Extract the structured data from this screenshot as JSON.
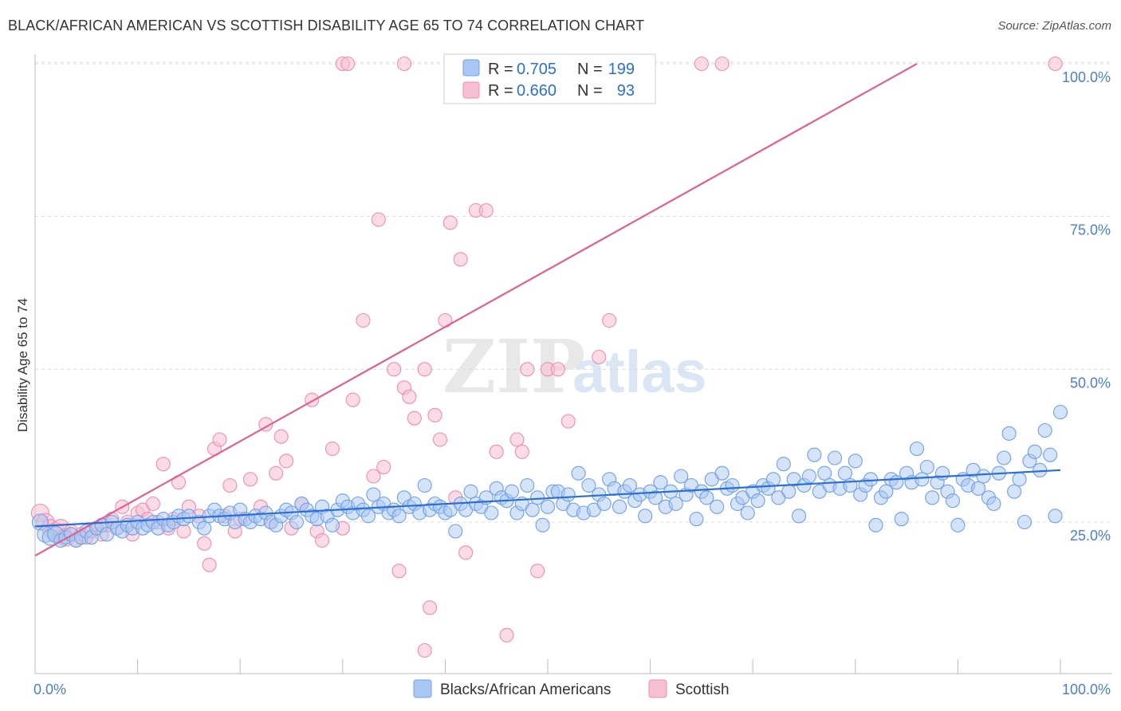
{
  "header": {
    "title": "BLACK/AFRICAN AMERICAN VS SCOTTISH DISABILITY AGE 65 TO 74 CORRELATION CHART",
    "source": "Source: ZipAtlas.com"
  },
  "watermark": {
    "zip": "ZIP",
    "atlas": "atlas"
  },
  "legend_box": {
    "rows": [
      {
        "r_label": "R = ",
        "r_value": "0.705",
        "n_label": "N = ",
        "n_value": "199",
        "color": "#6fa0e8"
      },
      {
        "r_label": "R = ",
        "r_value": "0.660",
        "n_label": "N = ",
        "n_value": "93",
        "color": "#f08cb0"
      }
    ]
  },
  "colors": {
    "blue_fill": "#a9c7f2",
    "blue_stroke": "#6fa0e8",
    "blue_line": "#2b6fd4",
    "pink_fill": "#f7bfd2",
    "pink_stroke": "#f08cb0",
    "pink_line": "#e06090",
    "tick_text": "#4a7fd0",
    "grid": "#dddddd"
  },
  "chart_data": {
    "type": "scatter",
    "title": "BLACK/AFRICAN AMERICAN VS SCOTTISH DISABILITY AGE 65 TO 74 CORRELATION CHART",
    "xlabel": "",
    "ylabel": "Disability Age 65 to 74",
    "xlim": [
      0,
      100
    ],
    "ylim": [
      0,
      105
    ],
    "x_tick_labels": [
      "0.0%",
      "100.0%"
    ],
    "y_ticks": [
      25,
      50,
      75,
      100
    ],
    "y_tick_labels": [
      "25.0%",
      "50.0%",
      "75.0%",
      "100.0%"
    ],
    "grid": true,
    "legend_position": "bottom-center",
    "series": [
      {
        "name": "Blacks/African Americans",
        "R": 0.705,
        "N": 199,
        "trend": {
          "x": [
            0,
            100
          ],
          "y": [
            24.3,
            33.5
          ]
        },
        "points": [
          [
            0.5,
            25
          ],
          [
            1,
            23
          ],
          [
            1.5,
            22.5
          ],
          [
            2,
            23
          ],
          [
            2.5,
            22
          ],
          [
            3,
            22.5
          ],
          [
            3.5,
            23
          ],
          [
            4,
            22
          ],
          [
            4.5,
            22.5
          ],
          [
            5,
            23.5
          ],
          [
            5.5,
            22.5
          ],
          [
            6,
            24
          ],
          [
            6.5,
            24.5
          ],
          [
            7,
            23
          ],
          [
            7.5,
            25
          ],
          [
            8,
            24
          ],
          [
            8.5,
            23.5
          ],
          [
            9,
            24.5
          ],
          [
            9.5,
            24
          ],
          [
            10,
            25
          ],
          [
            10.5,
            24
          ],
          [
            11,
            24.5
          ],
          [
            11.5,
            25
          ],
          [
            12,
            24
          ],
          [
            12.5,
            25.5
          ],
          [
            13,
            24.5
          ],
          [
            13.5,
            25
          ],
          [
            14,
            26
          ],
          [
            14.5,
            25.5
          ],
          [
            15,
            26
          ],
          [
            16,
            25
          ],
          [
            16.5,
            24
          ],
          [
            17,
            26
          ],
          [
            17.5,
            27
          ],
          [
            18,
            26
          ],
          [
            18.5,
            25.5
          ],
          [
            19,
            26.5
          ],
          [
            19.5,
            25
          ],
          [
            20,
            27
          ],
          [
            20.5,
            25.5
          ],
          [
            21,
            25
          ],
          [
            21.5,
            26
          ],
          [
            22,
            25.5
          ],
          [
            22.5,
            26.5
          ],
          [
            23,
            25
          ],
          [
            23.5,
            24.5
          ],
          [
            24,
            26
          ],
          [
            24.5,
            27
          ],
          [
            25,
            26.5
          ],
          [
            25.5,
            25
          ],
          [
            26,
            28
          ],
          [
            26.5,
            27
          ],
          [
            27,
            26
          ],
          [
            27.5,
            25.5
          ],
          [
            28,
            27.5
          ],
          [
            28.5,
            26
          ],
          [
            29,
            24.5
          ],
          [
            29.5,
            27
          ],
          [
            30,
            28.5
          ],
          [
            30.5,
            27.5
          ],
          [
            31,
            26.5
          ],
          [
            31.5,
            28
          ],
          [
            32,
            27
          ],
          [
            32.5,
            26
          ],
          [
            33,
            29.5
          ],
          [
            33.5,
            27.5
          ],
          [
            34,
            28
          ],
          [
            34.5,
            26.5
          ],
          [
            35,
            27
          ],
          [
            35.5,
            26
          ],
          [
            36,
            29
          ],
          [
            36.5,
            27.5
          ],
          [
            37,
            28
          ],
          [
            37.5,
            26.5
          ],
          [
            38,
            31
          ],
          [
            38.5,
            27
          ],
          [
            39,
            28
          ],
          [
            39.5,
            27.5
          ],
          [
            40,
            26.5
          ],
          [
            40.5,
            27
          ],
          [
            41,
            23.5
          ],
          [
            41.5,
            28
          ],
          [
            42,
            27
          ],
          [
            42.5,
            30
          ],
          [
            43,
            28
          ],
          [
            43.5,
            27.5
          ],
          [
            44,
            29
          ],
          [
            44.5,
            26.5
          ],
          [
            45,
            30.5
          ],
          [
            45.5,
            29
          ],
          [
            46,
            28.5
          ],
          [
            46.5,
            30
          ],
          [
            47,
            26.5
          ],
          [
            47.5,
            28
          ],
          [
            48,
            31
          ],
          [
            48.5,
            27
          ],
          [
            49,
            29
          ],
          [
            49.5,
            24.5
          ],
          [
            50,
            27.5
          ],
          [
            50.5,
            30
          ],
          [
            51,
            30
          ],
          [
            51.5,
            28
          ],
          [
            52,
            29.5
          ],
          [
            52.5,
            27
          ],
          [
            53,
            33
          ],
          [
            53.5,
            26.5
          ],
          [
            54,
            31
          ],
          [
            54.5,
            27
          ],
          [
            55,
            29.5
          ],
          [
            55.5,
            28
          ],
          [
            56,
            32
          ],
          [
            56.5,
            30.5
          ],
          [
            57,
            27.5
          ],
          [
            57.5,
            30
          ],
          [
            58,
            31
          ],
          [
            58.5,
            28.5
          ],
          [
            59,
            29.5
          ],
          [
            59.5,
            26
          ],
          [
            60,
            30
          ],
          [
            60.5,
            29
          ],
          [
            61,
            31.5
          ],
          [
            61.5,
            27.5
          ],
          [
            62,
            30
          ],
          [
            62.5,
            28
          ],
          [
            63,
            32.5
          ],
          [
            63.5,
            29.5
          ],
          [
            64,
            31
          ],
          [
            64.5,
            25.5
          ],
          [
            65,
            30
          ],
          [
            65.5,
            29
          ],
          [
            66,
            32
          ],
          [
            66.5,
            27.5
          ],
          [
            67,
            33
          ],
          [
            67.5,
            30.5
          ],
          [
            68,
            31
          ],
          [
            68.5,
            28
          ],
          [
            69,
            29
          ],
          [
            69.5,
            26.5
          ],
          [
            70,
            30
          ],
          [
            70.5,
            28.5
          ],
          [
            71,
            31
          ],
          [
            71.5,
            30.5
          ],
          [
            72,
            32
          ],
          [
            72.5,
            29
          ],
          [
            73,
            34.5
          ],
          [
            73.5,
            30
          ],
          [
            74,
            32
          ],
          [
            74.5,
            26
          ],
          [
            75,
            31
          ],
          [
            75.5,
            32.5
          ],
          [
            76,
            36
          ],
          [
            76.5,
            30
          ],
          [
            77,
            33
          ],
          [
            77.5,
            31
          ],
          [
            78,
            35.5
          ],
          [
            78.5,
            30.5
          ],
          [
            79,
            33
          ],
          [
            79.5,
            31
          ],
          [
            80,
            35
          ],
          [
            80.5,
            29.5
          ],
          [
            81,
            31
          ],
          [
            81.5,
            32
          ],
          [
            82,
            24.5
          ],
          [
            82.5,
            29
          ],
          [
            83,
            30
          ],
          [
            83.5,
            32
          ],
          [
            84,
            31.5
          ],
          [
            84.5,
            25.5
          ],
          [
            85,
            33
          ],
          [
            85.5,
            31.5
          ],
          [
            86,
            37
          ],
          [
            86.5,
            32
          ],
          [
            87,
            34
          ],
          [
            87.5,
            29
          ],
          [
            88,
            31.5
          ],
          [
            88.5,
            33
          ],
          [
            89,
            30
          ],
          [
            89.5,
            28.5
          ],
          [
            90,
            24.5
          ],
          [
            90.5,
            32
          ],
          [
            91,
            31
          ],
          [
            91.5,
            33.5
          ],
          [
            92,
            30.5
          ],
          [
            92.5,
            32.5
          ],
          [
            93,
            29
          ],
          [
            93.5,
            28
          ],
          [
            94,
            33
          ],
          [
            94.5,
            35.5
          ],
          [
            95,
            39.5
          ],
          [
            95.5,
            30
          ],
          [
            96,
            32
          ],
          [
            96.5,
            25
          ],
          [
            97,
            35
          ],
          [
            97.5,
            36.5
          ],
          [
            98,
            33.5
          ],
          [
            98.5,
            40
          ],
          [
            99,
            36
          ],
          [
            99.5,
            26
          ],
          [
            100,
            43
          ]
        ]
      },
      {
        "name": "Scottish",
        "R": 0.66,
        "N": 93,
        "trend": {
          "x": [
            0,
            86
          ],
          "y": [
            19.5,
            100
          ]
        },
        "points": [
          [
            0.5,
            26.5
          ],
          [
            1,
            25
          ],
          [
            1.5,
            24
          ],
          [
            2,
            23.5
          ],
          [
            2.5,
            24
          ],
          [
            3,
            22.5
          ],
          [
            3.5,
            23.5
          ],
          [
            4,
            22
          ],
          [
            4.5,
            23
          ],
          [
            5,
            22.5
          ],
          [
            5.5,
            23.5
          ],
          [
            6,
            24
          ],
          [
            6.5,
            23
          ],
          [
            7,
            24.5
          ],
          [
            7.5,
            25.5
          ],
          [
            8,
            24
          ],
          [
            8.5,
            27.5
          ],
          [
            9,
            25
          ],
          [
            9.5,
            23
          ],
          [
            10,
            26.5
          ],
          [
            10.5,
            27
          ],
          [
            11,
            25.5
          ],
          [
            11.5,
            28
          ],
          [
            12,
            25
          ],
          [
            12.5,
            34.5
          ],
          [
            13,
            24
          ],
          [
            13.5,
            25.5
          ],
          [
            14,
            31.5
          ],
          [
            14.5,
            23.5
          ],
          [
            15,
            27.5
          ],
          [
            16,
            26
          ],
          [
            16.5,
            21.5
          ],
          [
            17,
            18
          ],
          [
            17.5,
            37
          ],
          [
            18,
            38.5
          ],
          [
            18.5,
            26
          ],
          [
            19,
            31
          ],
          [
            19.5,
            23.5
          ],
          [
            20,
            25.5
          ],
          [
            21,
            32
          ],
          [
            22,
            27.5
          ],
          [
            22.5,
            41
          ],
          [
            23,
            25
          ],
          [
            23.5,
            33
          ],
          [
            24,
            39
          ],
          [
            24.5,
            35
          ],
          [
            25,
            24
          ],
          [
            26,
            28
          ],
          [
            27,
            45
          ],
          [
            27.5,
            23.5
          ],
          [
            28,
            22
          ],
          [
            29,
            37
          ],
          [
            30,
            24
          ],
          [
            31,
            45
          ],
          [
            32,
            58
          ],
          [
            33,
            32.5
          ],
          [
            33.5,
            74.5
          ],
          [
            34,
            34
          ],
          [
            35,
            50
          ],
          [
            35.5,
            17
          ],
          [
            36,
            47
          ],
          [
            36.5,
            45.5
          ],
          [
            37,
            42
          ],
          [
            38,
            50
          ],
          [
            39,
            42.5
          ],
          [
            39.5,
            38.5
          ],
          [
            40,
            58
          ],
          [
            40.5,
            74
          ],
          [
            41,
            29
          ],
          [
            41.5,
            68
          ],
          [
            42,
            20
          ],
          [
            43,
            76
          ],
          [
            44,
            76
          ],
          [
            45,
            36.5
          ],
          [
            46,
            6.5
          ],
          [
            47,
            38.5
          ],
          [
            47.5,
            36.5
          ],
          [
            48,
            50
          ],
          [
            49,
            17
          ],
          [
            50,
            50
          ],
          [
            51,
            50
          ],
          [
            52,
            41.5
          ],
          [
            55,
            52
          ],
          [
            56,
            58
          ],
          [
            38,
            4
          ],
          [
            38.5,
            11
          ],
          [
            30,
            100
          ],
          [
            36,
            100
          ],
          [
            41.5,
            100
          ],
          [
            65,
            100
          ],
          [
            67,
            100
          ],
          [
            99.5,
            100
          ],
          [
            30.5,
            100
          ]
        ]
      }
    ]
  }
}
